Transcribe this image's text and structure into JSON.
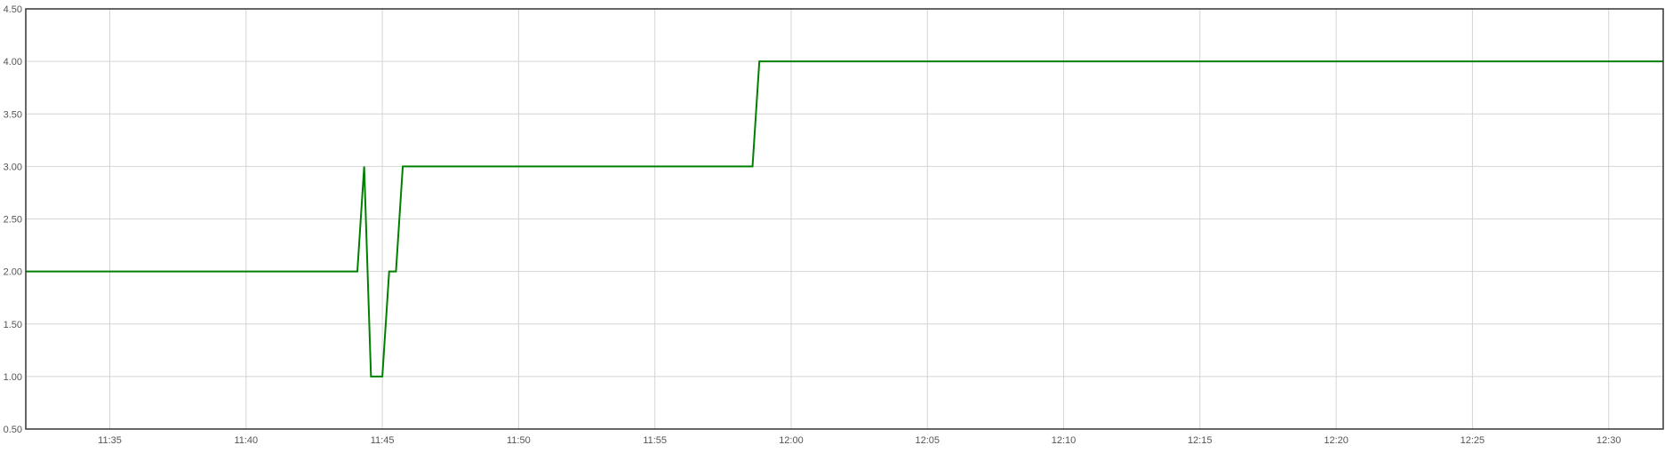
{
  "chart_data": {
    "type": "line",
    "title": "",
    "xlabel": "",
    "ylabel": "",
    "xlim": [
      "11:31:55",
      "12:32:00"
    ],
    "ylim": [
      0.5,
      4.5
    ],
    "grid": true,
    "x_ticks": [
      "11:35",
      "11:40",
      "11:45",
      "11:50",
      "11:55",
      "12:00",
      "12:05",
      "12:10",
      "12:15",
      "12:20",
      "12:25",
      "12:30"
    ],
    "y_ticks": [
      "0.50",
      "1.00",
      "1.50",
      "2.00",
      "2.50",
      "3.00",
      "3.50",
      "4.00",
      "4.50"
    ],
    "series": [
      {
        "color": "#008000",
        "x": [
          "11:31:55",
          "11:44:05",
          "11:44:20",
          "11:44:35",
          "11:45:00",
          "11:45:15",
          "11:45:30",
          "11:45:45",
          "11:58:35",
          "11:58:50",
          "12:32:00"
        ],
        "y": [
          2,
          2,
          3,
          1,
          1,
          2,
          2,
          3,
          3,
          4,
          4
        ]
      }
    ]
  }
}
